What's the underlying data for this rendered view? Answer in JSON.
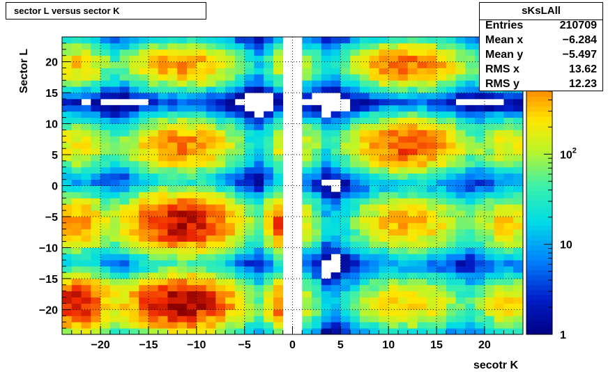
{
  "chart_data": {
    "type": "heatmap",
    "title": "sector L versus sector K",
    "xlabel": "secotr K",
    "ylabel": "Sector L",
    "xlim": [
      -24,
      24
    ],
    "ylim": [
      -24,
      24
    ],
    "grid": true,
    "x_ticks": [
      {
        "value": -20,
        "label": "−20"
      },
      {
        "value": -15,
        "label": "−15"
      },
      {
        "value": -10,
        "label": "−10"
      },
      {
        "value": -5,
        "label": "−5"
      },
      {
        "value": 0,
        "label": "0"
      },
      {
        "value": 5,
        "label": "5"
      },
      {
        "value": 10,
        "label": "10"
      },
      {
        "value": 15,
        "label": "15"
      },
      {
        "value": 20,
        "label": "20"
      }
    ],
    "y_ticks": [
      {
        "value": -20,
        "label": "−20"
      },
      {
        "value": -15,
        "label": "−15"
      },
      {
        "value": -10,
        "label": "−10"
      },
      {
        "value": -5,
        "label": "−5"
      },
      {
        "value": 0,
        "label": "0"
      },
      {
        "value": 5,
        "label": "5"
      },
      {
        "value": 10,
        "label": "10"
      },
      {
        "value": 15,
        "label": "15"
      },
      {
        "value": 20,
        "label": "20"
      }
    ],
    "z_scale": "log",
    "zlim": [
      1,
      2000
    ],
    "z_ticks": [
      {
        "value": 1,
        "label": "1"
      },
      {
        "value": 10,
        "label": "10"
      },
      {
        "value": 100,
        "label": "10",
        "exp": "2"
      }
    ],
    "clusters_x": [
      -22.5,
      -11.5,
      -1.0,
      1.5,
      12.0,
      22.5
    ],
    "clusters_x_width": [
      1.8,
      3.0,
      0.9,
      0.9,
      3.0,
      1.8
    ],
    "clusters_y": [
      -19.0,
      -6.0,
      6.5,
      19.5
    ],
    "clusters_y_width": [
      2.2,
      2.3,
      2.1,
      1.8
    ],
    "cluster_peak": [
      [
        1400,
        1800,
        800,
        120,
        300,
        250
      ],
      [
        500,
        1600,
        900,
        150,
        400,
        300
      ],
      [
        250,
        600,
        200,
        150,
        900,
        200
      ],
      [
        300,
        500,
        150,
        100,
        700,
        150
      ]
    ],
    "colorbar": "rainbow-log",
    "stats": {
      "name": "sKsLAll",
      "entries_label": "Entries",
      "entries": "210709",
      "mean_x_label": "Mean x",
      "mean_x": "−6.284",
      "mean_y_label": "Mean y",
      "mean_y": "−5.497",
      "rms_x_label": "RMS x",
      "rms_x": "13.62",
      "rms_y_label": "RMS y",
      "rms_y": "12.23"
    }
  }
}
